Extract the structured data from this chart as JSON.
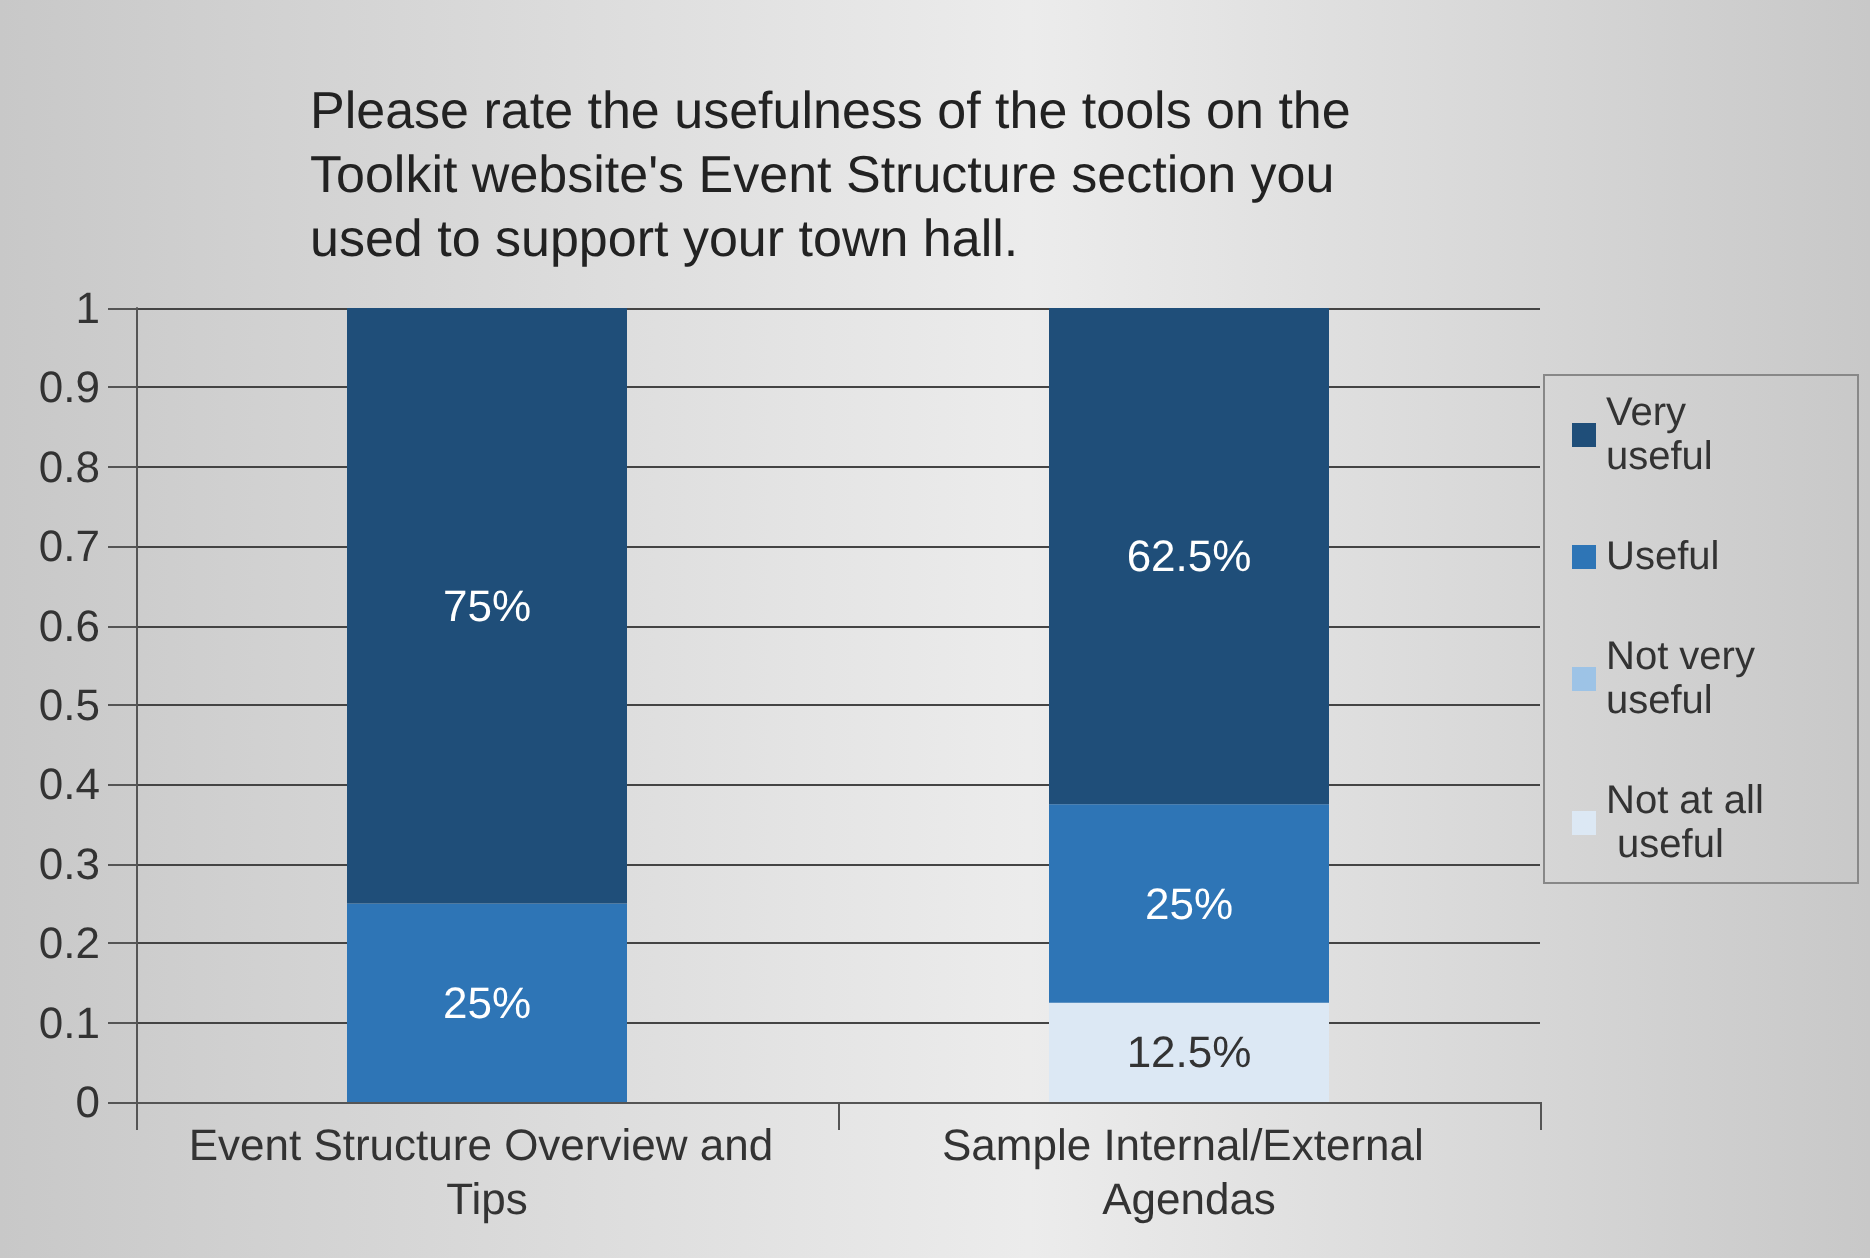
{
  "chart_data": {
    "type": "bar",
    "stacked": true,
    "title": "Please rate the usefulness of the tools on the Toolkit website's Event Structure section you used to support your town hall.",
    "categories": [
      "Event Structure Overview and Tips",
      "Sample Internal/External Agendas"
    ],
    "series": [
      {
        "name": "Not at all useful",
        "color": "#dce8f4",
        "values": [
          0,
          0.125
        ],
        "value_labels": [
          null,
          "12.5%"
        ]
      },
      {
        "name": "Not very useful",
        "color": "#9dc3e6",
        "values": [
          0,
          0
        ],
        "value_labels": [
          null,
          null
        ]
      },
      {
        "name": "Useful",
        "color": "#2e75b6",
        "values": [
          0.25,
          0.25
        ],
        "value_labels": [
          "25%",
          "25%"
        ]
      },
      {
        "name": "Very useful",
        "color": "#1f4e79",
        "values": [
          0.75,
          0.625
        ],
        "value_labels": [
          "75%",
          "62.5%"
        ]
      }
    ],
    "ylim": [
      0,
      1
    ],
    "yticks": [
      0,
      0.1,
      0.2,
      0.3,
      0.4,
      0.5,
      0.6,
      0.7,
      0.8,
      0.9,
      1
    ],
    "grid": "y",
    "legend": "right"
  }
}
